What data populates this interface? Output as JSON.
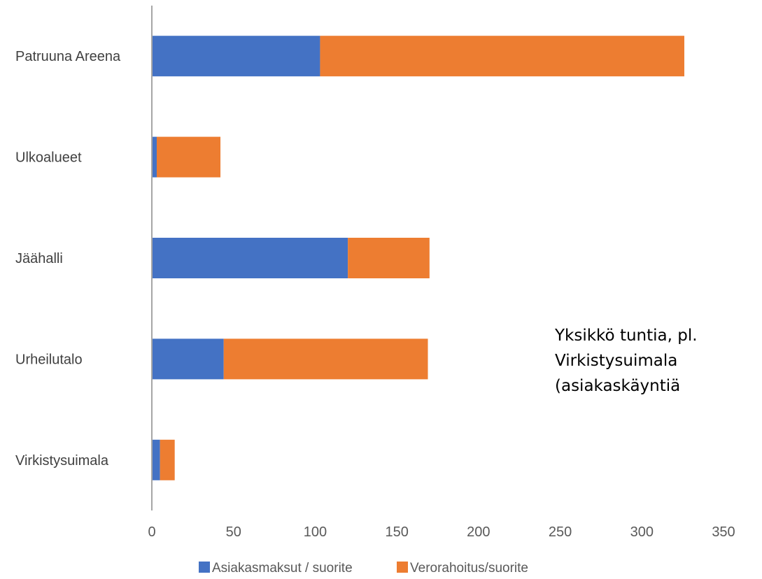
{
  "chart_data": {
    "type": "bar",
    "orientation": "horizontal",
    "stacked": true,
    "categories": [
      "Patruuna Areena",
      "Ulkoalueet",
      "Jäähalli",
      "Urheilutalo",
      "Virkistysuimala"
    ],
    "series": [
      {
        "name": "Asiakasmaksut / suorite",
        "color": "#4472C4",
        "values": [
          103,
          3,
          120,
          44,
          5
        ]
      },
      {
        "name": "Verorahoitus/suorite",
        "color": "#ED7D31",
        "values": [
          223,
          39,
          50,
          125,
          9
        ]
      }
    ],
    "xlim": [
      0,
      350
    ],
    "xticks": [
      0,
      50,
      100,
      150,
      200,
      250,
      300,
      350
    ],
    "grid": false,
    "legend_position": "bottom",
    "annotation": "Yksikkö tuntia, pl.\nVirkistysuimala\n(asiakaskäyntiä"
  }
}
